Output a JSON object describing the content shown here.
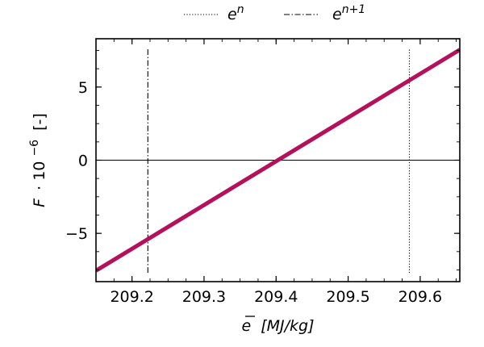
{
  "chart_data": {
    "type": "line",
    "xlabel": {
      "symbol": "e",
      "unit": "[MJ/kg]"
    },
    "ylabel": {
      "symbol": "F",
      "factor": "· 10",
      "exponent": "−6",
      "unit": "[-]"
    },
    "xlim": [
      209.15,
      209.655
    ],
    "ylim": [
      -8.3,
      8.3
    ],
    "xticks": [
      {
        "value": 209.2,
        "label": "209.2"
      },
      {
        "value": 209.3,
        "label": "209.3"
      },
      {
        "value": 209.4,
        "label": "209.4"
      },
      {
        "value": 209.5,
        "label": "209.5"
      },
      {
        "value": 209.6,
        "label": "209.6"
      }
    ],
    "yticks": [
      {
        "value": -5,
        "label": "−5"
      },
      {
        "value": 0,
        "label": "0"
      },
      {
        "value": 5,
        "label": "5"
      }
    ],
    "series": [
      {
        "style": "solid",
        "color": "#b5105a",
        "x": [
          209.15,
          209.655
        ],
        "y": [
          -7.55,
          7.55
        ]
      }
    ],
    "zero_line": {
      "y": 0,
      "color": "#000000"
    },
    "vlines": [
      {
        "name": "e",
        "superscript": "n+1",
        "x": 209.222,
        "style": "dashdot",
        "y_range": [
          -7.7,
          7.6
        ]
      },
      {
        "name": "e",
        "superscript": "n",
        "x": 209.585,
        "style": "dotted",
        "y_range": [
          -7.7,
          7.6
        ]
      }
    ],
    "legend": {
      "placement": "top-center, outside plot",
      "entries": [
        {
          "name": "e",
          "superscript": "n",
          "style": "dotted"
        },
        {
          "name": "e",
          "superscript": "n+1",
          "style": "dashdot"
        }
      ]
    },
    "grid": false,
    "ticks_direction": "in",
    "minor_ticks": true
  }
}
